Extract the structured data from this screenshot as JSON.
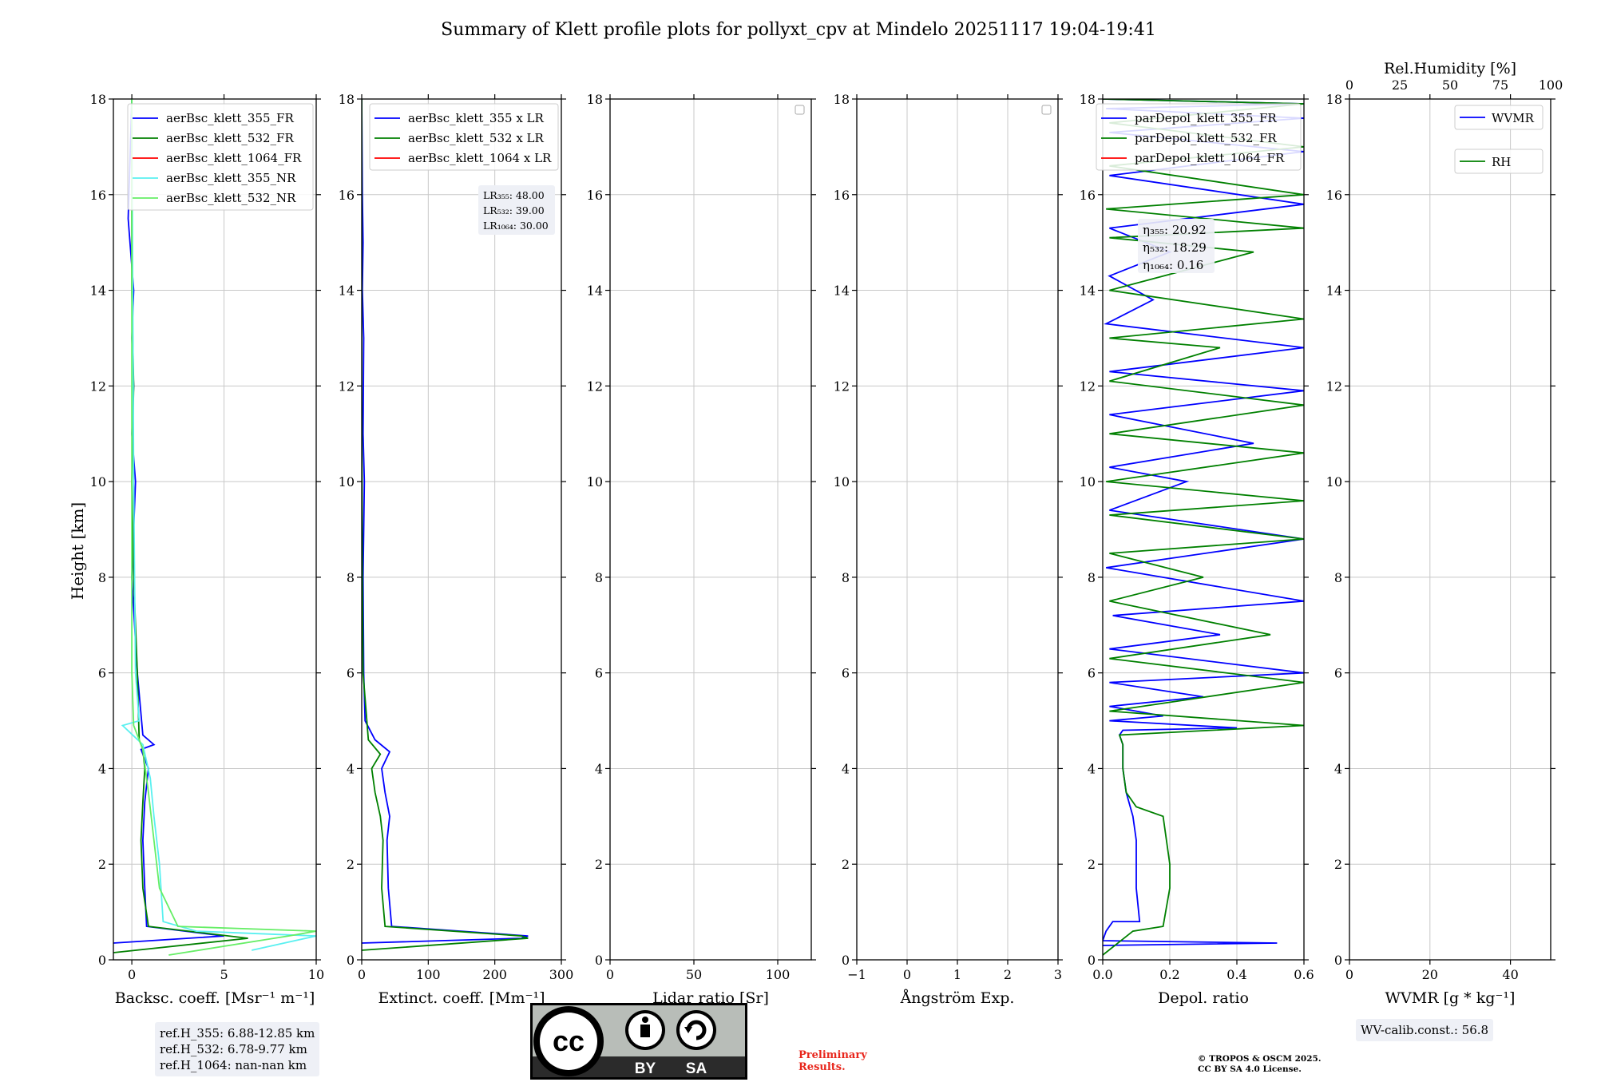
{
  "title": "Summary of Klett profile plots for pollyxt_cpv at Mindelo 20251117 19:04-19:41",
  "y_axis_label": "Height [km]",
  "colors": {
    "blue": "#0000ff",
    "green": "#008000",
    "red": "#ff0000",
    "cyan": "#5af0f0",
    "lightgreen": "#66ee66",
    "grid": "#c8c8c8"
  },
  "chart_data": [
    {
      "id": "backscatter",
      "type": "line",
      "xlabel": "Backsc. coeff. [Msr⁻¹ m⁻¹]",
      "xlim": [
        -1,
        10
      ],
      "ylim": [
        0,
        18
      ],
      "xticks": [
        0,
        5,
        10
      ],
      "xtick_labels": [
        "0",
        "5",
        "10"
      ],
      "legend": "top-right",
      "series": [
        {
          "name": "aerBsc_klett_355_FR",
          "color": "#0000ff",
          "x": [
            -1,
            5.0,
            0.8,
            0.7,
            0.6,
            0.7,
            0.9,
            0.5,
            1.2,
            0.6,
            0.3,
            0.0,
            0.2,
            0.0,
            0.1,
            0.0,
            0.1,
            -0.2,
            0.0
          ],
          "y": [
            0.35,
            0.5,
            0.7,
            1.5,
            2.5,
            3.3,
            4.0,
            4.4,
            4.5,
            4.7,
            6.0,
            8.0,
            10.0,
            11.0,
            12.0,
            13.0,
            14.0,
            15.5,
            18
          ]
        },
        {
          "name": "aerBsc_klett_532_FR",
          "color": "#008000",
          "x": [
            -1,
            6.3,
            0.9,
            0.6,
            0.5,
            0.6,
            0.7,
            0.6,
            0.4,
            0.3,
            0.1,
            0.0,
            0.1,
            0.0,
            0.0
          ],
          "y": [
            0.15,
            0.45,
            0.7,
            1.5,
            2.5,
            3.3,
            4.0,
            4.4,
            4.6,
            6.0,
            8.0,
            10.0,
            12.0,
            14.0,
            18
          ]
        },
        {
          "name": "aerBsc_klett_1064_FR",
          "color": "#ff0000",
          "x": [],
          "y": []
        },
        {
          "name": "aerBsc_klett_355_NR",
          "color": "#5af0f0",
          "x": [
            6.5,
            10,
            3.5,
            1.7,
            1.5,
            1.2,
            1.0,
            0.6,
            -0.5,
            0.4,
            0.2,
            0.1,
            0.0
          ],
          "y": [
            0.2,
            0.5,
            0.6,
            0.8,
            2.0,
            3.0,
            3.8,
            4.5,
            4.9,
            5.0,
            6.0,
            10.0,
            18
          ]
        },
        {
          "name": "aerBsc_klett_532_NR",
          "color": "#66ee66",
          "x": [
            2.0,
            8.5,
            10,
            2.5,
            1.5,
            1.2,
            0.9,
            0.6,
            0.1,
            0.0,
            0.0
          ],
          "y": [
            0.1,
            0.5,
            0.6,
            0.7,
            1.5,
            2.5,
            3.5,
            4.4,
            4.9,
            6.0,
            18
          ]
        }
      ]
    },
    {
      "id": "extinction",
      "type": "line",
      "xlabel": "Extinct. coeff. [Mm⁻¹]",
      "xlim": [
        0,
        300
      ],
      "ylim": [
        0,
        18
      ],
      "xticks": [
        0,
        100,
        200,
        300
      ],
      "xtick_labels": [
        "0",
        "100",
        "200",
        "300"
      ],
      "legend": "top-right",
      "series": [
        {
          "name": "aerBsc_klett_355 x LR",
          "color": "#0000ff",
          "x": [
            0,
            240,
            250,
            45,
            40,
            38,
            42,
            35,
            30,
            42,
            20,
            5,
            3,
            2,
            4,
            2,
            3,
            1,
            2,
            1,
            0
          ],
          "y": [
            0.35,
            0.45,
            0.5,
            0.7,
            1.5,
            2.5,
            3.0,
            3.5,
            4.0,
            4.35,
            4.6,
            5.0,
            6.0,
            8.0,
            10.0,
            11.0,
            13.0,
            14.0,
            15.0,
            16.0,
            18
          ]
        },
        {
          "name": "aerBsc_klett_532 x LR",
          "color": "#008000",
          "x": [
            0,
            250,
            240,
            35,
            30,
            32,
            28,
            20,
            15,
            28,
            10,
            2,
            1,
            0,
            0
          ],
          "y": [
            0.2,
            0.45,
            0.5,
            0.7,
            1.5,
            2.5,
            3.0,
            3.5,
            4.0,
            4.3,
            4.6,
            6.0,
            8.0,
            12.0,
            18
          ]
        },
        {
          "name": "aerBsc_klett_1064 x LR",
          "color": "#ff0000",
          "x": [],
          "y": []
        }
      ],
      "annotations": [
        "LR₃₅₅: 48.00",
        "LR₅₃₂: 39.00",
        "LR₁₀₆₄: 30.00"
      ]
    },
    {
      "id": "lidar_ratio",
      "type": "line",
      "xlabel": "Lidar ratio [Sr]",
      "xlim": [
        0,
        120
      ],
      "ylim": [
        0,
        18
      ],
      "xticks": [
        0,
        50,
        100
      ],
      "xtick_labels": [
        "0",
        "50",
        "100"
      ],
      "legend": "top-right",
      "series": []
    },
    {
      "id": "angstrom",
      "type": "line",
      "xlabel": "Ångström Exp.",
      "xlim": [
        -1,
        3
      ],
      "ylim": [
        0,
        18
      ],
      "xticks": [
        -1,
        0,
        1,
        2,
        3
      ],
      "xtick_labels": [
        "−1",
        "0",
        "1",
        "2",
        "3"
      ],
      "legend": "top-right",
      "series": []
    },
    {
      "id": "depol",
      "type": "line",
      "xlabel": "Depol. ratio",
      "xlim": [
        0,
        0.6
      ],
      "ylim": [
        0,
        18
      ],
      "xticks": [
        0,
        0.2,
        0.4,
        0.6
      ],
      "xtick_labels": [
        "0.0",
        "0.2",
        "0.4",
        "0.6"
      ],
      "legend": "top-right",
      "series": [
        {
          "name": "parDepol_klett_355_FR",
          "color": "#0000ff",
          "x": [
            0.0,
            0.52,
            0.0,
            0.01,
            0.03,
            0.11,
            0.1,
            0.1,
            0.1,
            0.09,
            0.07,
            0.06,
            0.06,
            0.05,
            0.06,
            0.4,
            0.02,
            0.18,
            0.02,
            0.3,
            0.02,
            0.6,
            0.02,
            0.35,
            0.03,
            0.6,
            0.01,
            0.6,
            0.02,
            0.25,
            0.02,
            0.45,
            0.02,
            0.6,
            0.02,
            0.6,
            0.01,
            0.15,
            0.02,
            0.2,
            0.02,
            0.6,
            0.02,
            0.6,
            0.02,
            0.6,
            0.01,
            0.6,
            0.0
          ],
          "y": [
            0.3,
            0.35,
            0.4,
            0.6,
            0.8,
            0.8,
            1.5,
            2.0,
            2.5,
            3.0,
            3.5,
            4.0,
            4.5,
            4.7,
            4.8,
            4.85,
            5.0,
            5.1,
            5.3,
            5.5,
            5.8,
            6.0,
            6.5,
            6.8,
            7.2,
            7.5,
            8.2,
            8.8,
            9.4,
            10.0,
            10.3,
            10.8,
            11.4,
            11.9,
            12.3,
            12.8,
            13.3,
            13.8,
            14.3,
            14.8,
            15.3,
            15.8,
            16.4,
            16.9,
            17.3,
            17.6,
            17.8,
            17.9,
            18
          ]
        },
        {
          "name": "parDepol_klett_532_FR",
          "color": "#008000",
          "x": [
            0.0,
            0.09,
            0.18,
            0.2,
            0.2,
            0.19,
            0.18,
            0.1,
            0.07,
            0.06,
            0.06,
            0.05,
            0.6,
            0.02,
            0.6,
            0.02,
            0.5,
            0.02,
            0.3,
            0.02,
            0.6,
            0.02,
            0.6,
            0.01,
            0.6,
            0.02,
            0.6,
            0.02,
            0.35,
            0.02,
            0.6,
            0.02,
            0.45,
            0.02,
            0.6,
            0.01,
            0.6,
            0.02,
            0.6,
            0.02,
            0.6,
            0.0
          ],
          "y": [
            0.1,
            0.6,
            0.7,
            1.5,
            2.0,
            2.5,
            3.0,
            3.2,
            3.5,
            4.0,
            4.5,
            4.7,
            4.9,
            5.2,
            5.8,
            6.3,
            6.8,
            7.5,
            8.0,
            8.5,
            8.8,
            9.3,
            9.6,
            10.0,
            10.6,
            11.0,
            11.6,
            12.1,
            12.8,
            13.0,
            13.4,
            14.0,
            14.8,
            15.1,
            15.3,
            15.7,
            16.0,
            16.6,
            17.0,
            17.5,
            17.9,
            18
          ]
        },
        {
          "name": "parDepol_klett_1064_FR",
          "color": "#ff0000",
          "x": [],
          "y": []
        }
      ],
      "annotations": [
        "η₃₅₅: 20.92",
        "η₅₃₂: 18.29",
        "η₁₀₆₄: 0.16"
      ]
    },
    {
      "id": "wvmr",
      "type": "line",
      "xlabel": "WVMR [g * kg⁻¹]",
      "xlim": [
        0,
        50
      ],
      "ylim": [
        0,
        18
      ],
      "xticks": [
        0,
        20,
        40
      ],
      "xtick_labels": [
        "0",
        "20",
        "40"
      ],
      "top_axis": {
        "label": "Rel.Humidity [%]",
        "xlim": [
          0,
          100
        ],
        "xticks": [
          0,
          25,
          50,
          75,
          100
        ],
        "xtick_labels": [
          "0",
          "25",
          "50",
          "75",
          "100"
        ]
      },
      "legend": "top-right",
      "series": [
        {
          "name": "WVMR",
          "color": "#0000ff",
          "x": [],
          "y": []
        },
        {
          "name": "RH",
          "color": "#008000",
          "x": [],
          "y": []
        }
      ]
    }
  ],
  "ref_heights": [
    "ref.H_355: 6.88-12.85 km",
    "ref.H_532: 6.78-9.77 km",
    "ref.H_1064: nan-nan km"
  ],
  "wv_calib": "WV-calib.const.: 56.8",
  "cc_badge": {
    "by": "BY",
    "sa": "SA",
    "cc": "cc"
  },
  "preliminary": "Preliminary Results.",
  "copyright": [
    "© TROPOS & OSCM 2025.",
    "CC BY SA 4.0 License."
  ]
}
